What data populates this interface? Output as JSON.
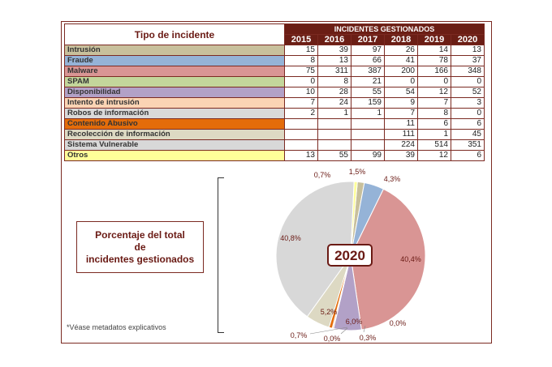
{
  "table": {
    "header_tipo": "Tipo de incidente",
    "header_group": "INCIDENTES GESTIONADOS",
    "years": [
      "2015",
      "2016",
      "2017",
      "2018",
      "2019",
      "2020"
    ],
    "rows": [
      {
        "label": "Intrusión",
        "color": "#c8c09c",
        "values": [
          "15",
          "39",
          "97",
          "26",
          "14",
          "13"
        ]
      },
      {
        "label": "Fraude",
        "color": "#95b3d7",
        "values": [
          "8",
          "13",
          "66",
          "41",
          "78",
          "37"
        ]
      },
      {
        "label": "Malware",
        "color": "#d99594",
        "values": [
          "75",
          "311",
          "387",
          "200",
          "166",
          "348"
        ]
      },
      {
        "label": "SPAM",
        "color": "#c3d69b",
        "values": [
          "0",
          "8",
          "21",
          "0",
          "0",
          "0"
        ]
      },
      {
        "label": "Disponibilidad",
        "color": "#b2a1c7",
        "values": [
          "10",
          "28",
          "55",
          "54",
          "12",
          "52"
        ]
      },
      {
        "label": "Intento de intrusión",
        "color": "#fbd4b4",
        "values": [
          "7",
          "24",
          "159",
          "9",
          "7",
          "3"
        ]
      },
      {
        "label": "Robos de información",
        "color": "#d9d9d9",
        "values": [
          "2",
          "1",
          "1",
          "7",
          "8",
          "0"
        ]
      },
      {
        "label": "Contenido Abusivo",
        "color": "#e46c0a",
        "values": [
          "",
          "",
          "",
          "11",
          "6",
          "6"
        ]
      },
      {
        "label": "Recolección de información",
        "color": "#ddd9c3",
        "values": [
          "",
          "",
          "",
          "111",
          "1",
          "45"
        ]
      },
      {
        "label": "Sistema Vulnerable",
        "color": "#d8d8d8",
        "values": [
          "",
          "",
          "",
          "224",
          "514",
          "351"
        ]
      },
      {
        "label": "Otros",
        "color": "#ffff99",
        "values": [
          "13",
          "55",
          "99",
          "39",
          "12",
          "6"
        ]
      }
    ]
  },
  "chart_data": {
    "type": "pie",
    "title": "2020",
    "subtitle": "Porcentaje del total de incidentes gestionados",
    "slices": [
      {
        "label": "Intrusión",
        "value": 1.5,
        "text": "1,5%",
        "color": "#c8c09c"
      },
      {
        "label": "Fraude",
        "value": 4.3,
        "text": "4,3%",
        "color": "#95b3d7"
      },
      {
        "label": "Malware",
        "value": 40.4,
        "text": "40,4%",
        "color": "#d99594"
      },
      {
        "label": "SPAM",
        "value": 0.0,
        "text": "0,0%",
        "color": "#c3d69b"
      },
      {
        "label": "Disponibilidad",
        "value": 6.0,
        "text": "6,0%",
        "color": "#b2a1c7"
      },
      {
        "label": "Intento de intrusión",
        "value": 0.3,
        "text": "0,3%",
        "color": "#fbd4b4"
      },
      {
        "label": "Robos de información",
        "value": 0.0,
        "text": "0,0%",
        "color": "#d9d9d9"
      },
      {
        "label": "Contenido Abusivo",
        "value": 0.7,
        "text": "0,7%",
        "color": "#e46c0a"
      },
      {
        "label": "Recolección de información",
        "value": 5.2,
        "text": "5,2%",
        "color": "#ddd9c3"
      },
      {
        "label": "Sistema Vulnerable",
        "value": 40.8,
        "text": "40,8%",
        "color": "#d8d8d8"
      },
      {
        "label": "Otros",
        "value": 0.7,
        "text": "0,7%",
        "color": "#ffff99"
      }
    ]
  },
  "summary_box": {
    "line1": "Porcentaje del total",
    "line2": "de",
    "line3": "incidentes gestionados"
  },
  "note": "*Véase metadatos explicativos"
}
